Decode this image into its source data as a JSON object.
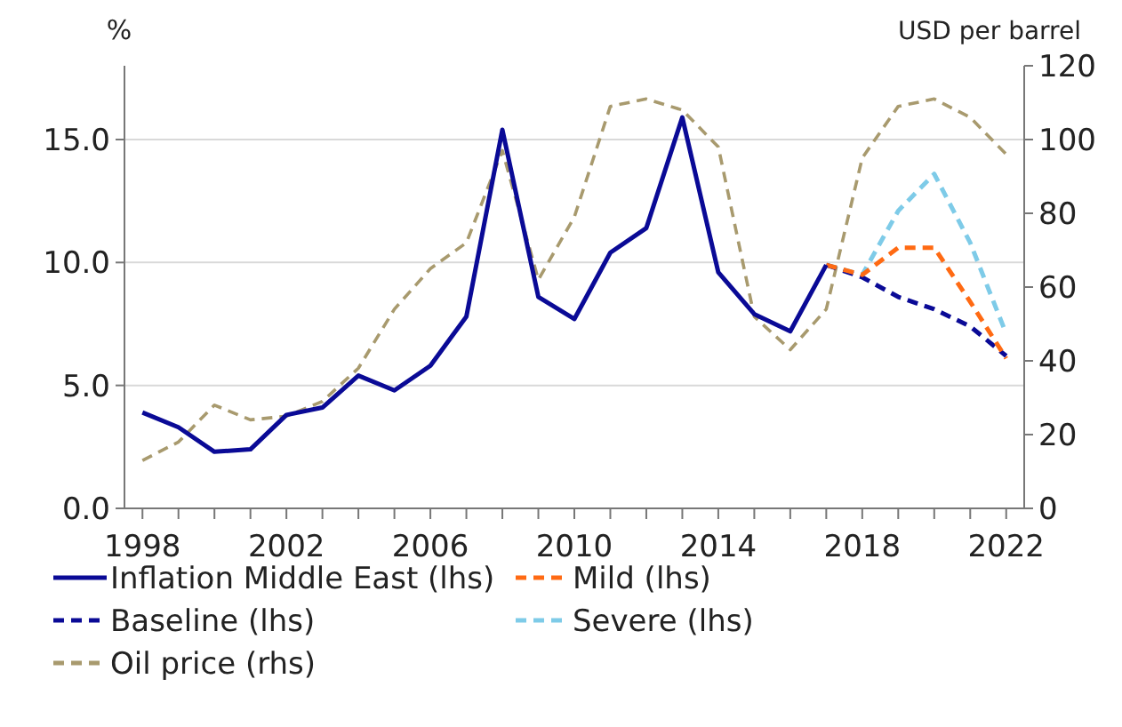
{
  "chart_data": {
    "type": "line",
    "ylabel": "%",
    "y2label": "USD per barrel",
    "x": [
      1998,
      1999,
      2000,
      2001,
      2002,
      2003,
      2004,
      2005,
      2006,
      2007,
      2008,
      2009,
      2010,
      2011,
      2012,
      2013,
      2014,
      2015,
      2016,
      2017,
      2018,
      2019,
      2020,
      2021,
      2022
    ],
    "series": [
      {
        "name": "Inflation Middle East (lhs)",
        "color": "#0a0a96",
        "line_style": "solid",
        "x": [
          1998,
          1999,
          2000,
          2001,
          2002,
          2003,
          2004,
          2005,
          2006,
          2007,
          2008,
          2009,
          2010,
          2011,
          2012,
          2013,
          2014,
          2015,
          2016,
          2017
        ],
        "values": [
          3.9,
          3.3,
          2.3,
          2.4,
          3.8,
          4.1,
          5.4,
          4.8,
          5.8,
          7.8,
          15.4,
          8.6,
          7.7,
          10.4,
          11.4,
          15.9,
          9.6,
          7.9,
          7.2,
          9.9
        ]
      },
      {
        "name": "Mild (lhs)",
        "color": "#ff6a13",
        "line_style": "dashed",
        "x": [
          2017,
          2018,
          2019,
          2020,
          2021,
          2022
        ],
        "values": [
          9.9,
          9.5,
          10.6,
          10.6,
          8.4,
          6.1
        ]
      },
      {
        "name": "Baseline (lhs)",
        "color": "#0a0a96",
        "line_style": "dashed",
        "x": [
          2017,
          2018,
          2019,
          2020,
          2021,
          2022
        ],
        "values": [
          9.9,
          9.4,
          8.6,
          8.1,
          7.4,
          6.2
        ]
      },
      {
        "name": "Severe (lhs)",
        "color": "#7ecbe8",
        "line_style": "dashed",
        "x": [
          2017,
          2018,
          2019,
          2020,
          2021,
          2022
        ],
        "values": [
          9.9,
          9.5,
          12.1,
          13.6,
          10.8,
          7.1
        ]
      },
      {
        "name": "Oil price (rhs)",
        "color": "#a89a6e",
        "line_style": "dashed",
        "axis": "y2",
        "values": [
          13,
          18,
          28,
          24,
          25,
          29,
          38,
          54,
          65,
          72,
          97,
          62,
          79,
          109,
          111,
          108,
          98,
          52,
          43,
          54,
          95,
          109,
          111,
          106,
          96
        ]
      }
    ],
    "xlim": [
      1997.5,
      2022.5
    ],
    "xticks": [
      1998,
      {
        "value": 1999,
        "label": null
      },
      {
        "value": 2000,
        "label": null
      },
      {
        "value": 2001,
        "label": null
      },
      2002,
      {
        "value": 2003,
        "label": null
      },
      {
        "value": 2004,
        "label": null
      },
      {
        "value": 2005,
        "label": null
      },
      2006,
      {
        "value": 2007,
        "label": null
      },
      {
        "value": 2008,
        "label": null
      },
      {
        "value": 2009,
        "label": null
      },
      2010,
      {
        "value": 2011,
        "label": null
      },
      {
        "value": 2012,
        "label": null
      },
      {
        "value": 2013,
        "label": null
      },
      2014,
      {
        "value": 2015,
        "label": null
      },
      {
        "value": 2016,
        "label": null
      },
      {
        "value": 2017,
        "label": null
      },
      2018,
      {
        "value": 2019,
        "label": null
      },
      {
        "value": 2020,
        "label": null
      },
      {
        "value": 2021,
        "label": null
      },
      2022
    ],
    "ylim": [
      0,
      18
    ],
    "yticks": [
      {
        "value": 0,
        "label": "0.0"
      },
      {
        "value": 5,
        "label": "5.0"
      },
      {
        "value": 10,
        "label": "10.0"
      },
      {
        "value": 15,
        "label": "15.0"
      }
    ],
    "y2lim": [
      0,
      120
    ],
    "y2ticks": [
      0,
      20,
      40,
      60,
      80,
      100,
      120
    ],
    "grid": "y",
    "legend": "bottom",
    "marker": "none"
  }
}
